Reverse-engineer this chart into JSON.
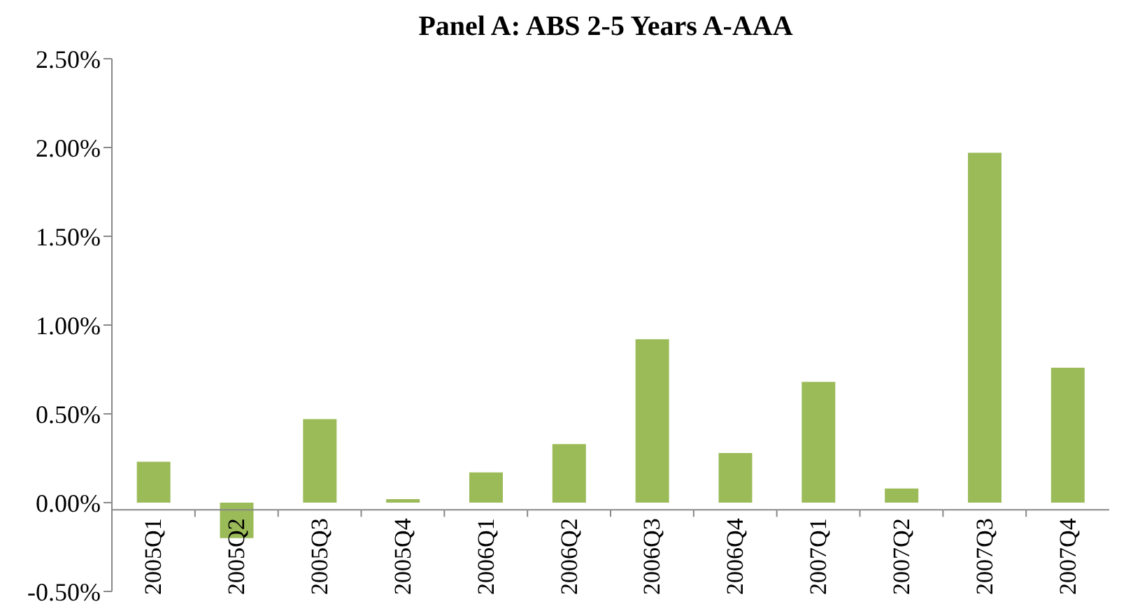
{
  "chart_data": {
    "type": "bar",
    "title": "Panel A: ABS 2-5 Years A-AAA",
    "categories": [
      "2005Q1",
      "2005Q2",
      "2005Q3",
      "2005Q4",
      "2006Q1",
      "2006Q2",
      "2006Q3",
      "2006Q4",
      "2007Q1",
      "2007Q2",
      "2007Q3",
      "2007Q4"
    ],
    "values": [
      0.23,
      -0.2,
      0.47,
      0.02,
      0.17,
      0.33,
      0.92,
      0.28,
      0.68,
      0.08,
      1.97,
      0.76
    ],
    "color": "#9bbb59",
    "ylim": [
      -0.5,
      2.5
    ],
    "yticks": [
      {
        "value": -0.5,
        "label": "-0.50%"
      },
      {
        "value": 0,
        "label": "0.00%"
      },
      {
        "value": 0.5,
        "label": "0.50%"
      },
      {
        "value": 1,
        "label": "1.00%"
      },
      {
        "value": 1.5,
        "label": "1.50%"
      },
      {
        "value": 2,
        "label": "2.00%"
      },
      {
        "value": 2.5,
        "label": "2.50%"
      }
    ],
    "grid": false,
    "legend": false
  }
}
